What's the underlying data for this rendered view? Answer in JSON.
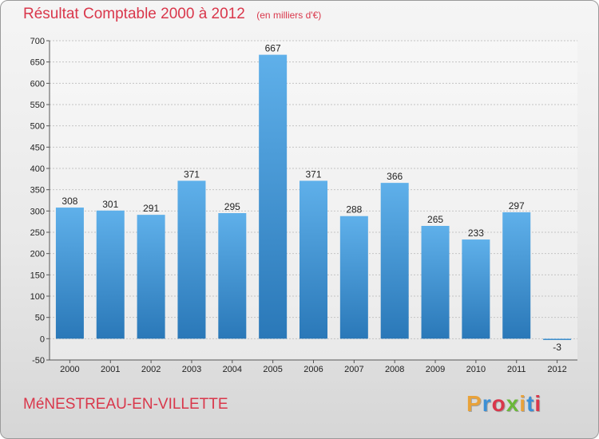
{
  "header": {
    "title": "Résultat Comptable 2000 à 2012",
    "subtitle": "(en milliers d'€)"
  },
  "footer": {
    "commune": "MéNESTREAU-EN-VILLETTE",
    "logo": "Proxiti"
  },
  "colors": {
    "title": "#d9374b",
    "bar_top": "#5fb0ea",
    "bar_bottom": "#2a78b8",
    "logo": [
      "#e8a23a",
      "#3a8fd6",
      "#d9374b",
      "#6bb83a",
      "#e8a23a",
      "#3a8fd6",
      "#d9374b"
    ]
  },
  "chart_data": {
    "type": "bar",
    "categories": [
      "2000",
      "2001",
      "2002",
      "2003",
      "2004",
      "2005",
      "2006",
      "2007",
      "2008",
      "2009",
      "2010",
      "2011",
      "2012"
    ],
    "values": [
      308,
      301,
      291,
      371,
      295,
      667,
      371,
      288,
      366,
      265,
      233,
      297,
      -3
    ],
    "ylim": [
      -50,
      700
    ],
    "yticks": [
      -50,
      0,
      50,
      100,
      150,
      200,
      250,
      300,
      350,
      400,
      450,
      500,
      550,
      600,
      650,
      700
    ],
    "grid": true
  }
}
